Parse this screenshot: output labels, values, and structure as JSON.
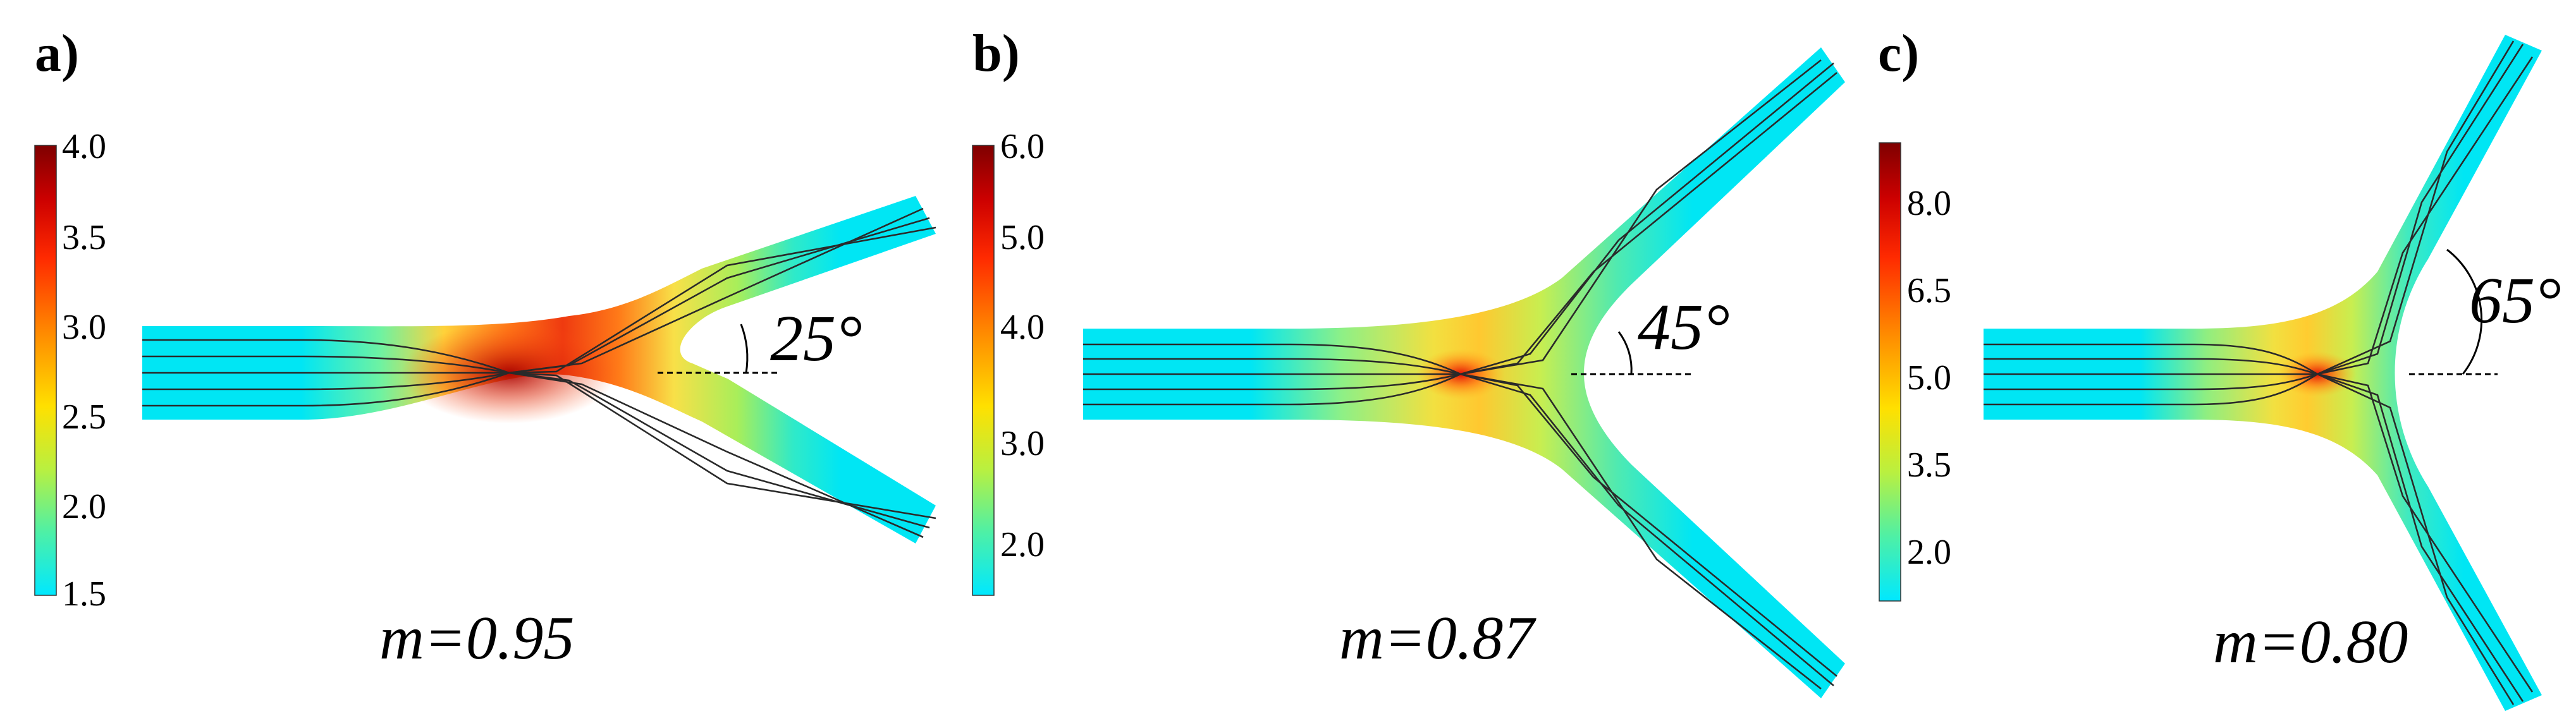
{
  "panels": [
    {
      "label": "a)",
      "angle_label": "25°",
      "m_label": "m=0.95",
      "colorbar_ticks": [
        "4.0",
        "3.5",
        "3.0",
        "2.5",
        "2.0",
        "1.5"
      ],
      "colorbar_min": 1.5,
      "colorbar_max": 4.0,
      "branch_angle_deg": 25
    },
    {
      "label": "b)",
      "angle_label": "45°",
      "m_label": "m=0.87",
      "colorbar_ticks": [
        "6.0",
        "5.0",
        "4.0",
        "3.0",
        "2.0"
      ],
      "colorbar_min": 1.5,
      "colorbar_max": 6.0,
      "branch_angle_deg": 45
    },
    {
      "label": "c)",
      "angle_label": "65°",
      "m_label": "m=0.80",
      "colorbar_ticks": [
        "8.0",
        "6.5",
        "5.0",
        "3.5",
        "2.0"
      ],
      "colorbar_min": 1.2,
      "colorbar_max": 9.0,
      "branch_angle_deg": 65
    }
  ],
  "colormap": [
    "#7f0000",
    "#cc0000",
    "#ff2200",
    "#ff7a00",
    "#ffd700",
    "#c8f03c",
    "#5ef09a",
    "#00e5ff"
  ]
}
